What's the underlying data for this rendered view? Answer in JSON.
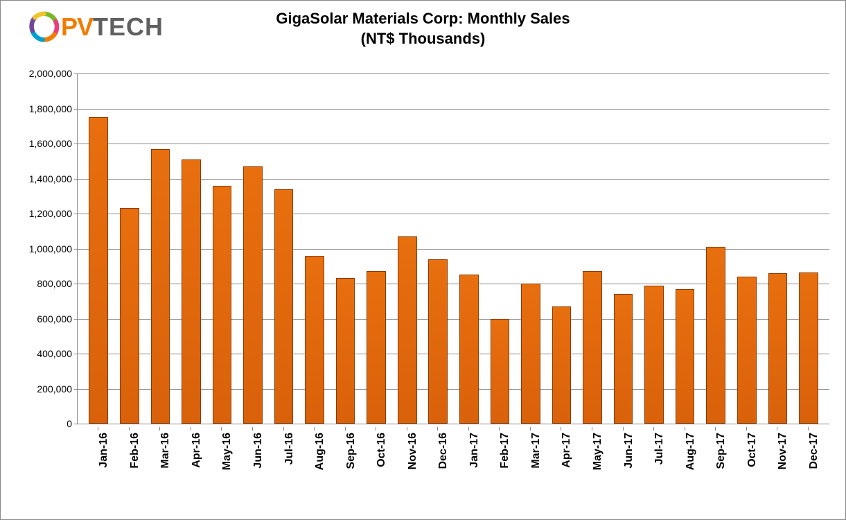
{
  "chart": {
    "type": "bar",
    "title_line1": "GigaSolar Materials Corp: Monthly Sales",
    "title_line2": "(NT$ Thousands)",
    "title_fontsize": 22,
    "background_color": "#ffffff",
    "border_color": "#888888",
    "grid_color": "#888888",
    "bar_color": "#e86f0e",
    "bar_border_color": "#8b3a00",
    "label_color": "#000000",
    "x_label_fontsize": 16,
    "y_label_fontsize": 14,
    "ylim": [
      0,
      2000000
    ],
    "ytick_step": 200000,
    "yticks": [
      {
        "value": 0,
        "label": "0"
      },
      {
        "value": 200000,
        "label": "200,000"
      },
      {
        "value": 400000,
        "label": "400,000"
      },
      {
        "value": 600000,
        "label": "600,000"
      },
      {
        "value": 800000,
        "label": "800,000"
      },
      {
        "value": 1000000,
        "label": "1,000,000"
      },
      {
        "value": 1200000,
        "label": "1,200,000"
      },
      {
        "value": 1400000,
        "label": "1,400,000"
      },
      {
        "value": 1600000,
        "label": "1,600,000"
      },
      {
        "value": 1800000,
        "label": "1,800,000"
      },
      {
        "value": 2000000,
        "label": "2,000,000"
      }
    ],
    "categories": [
      "Jan-16",
      "Feb-16",
      "Mar-16",
      "Apr-16",
      "May-16",
      "Jun-16",
      "Jul-16",
      "Aug-16",
      "Sep-16",
      "Oct-16",
      "Nov-16",
      "Dec-16",
      "Jan-17",
      "Feb-17",
      "Mar-17",
      "Apr-17",
      "May-17",
      "Jun-17",
      "Jul-17",
      "Aug-17",
      "Sep-17",
      "Oct-17",
      "Nov-17",
      "Dec-17"
    ],
    "values": [
      1750000,
      1230000,
      1570000,
      1510000,
      1360000,
      1470000,
      1340000,
      960000,
      830000,
      870000,
      1070000,
      940000,
      850000,
      600000,
      800000,
      670000,
      870000,
      740000,
      790000,
      770000,
      1010000,
      840000,
      860000,
      865000
    ],
    "bar_width": 0.62
  },
  "logo": {
    "pv_text": "PV",
    "tech_text": "TECH",
    "pv_color": "#f07d00",
    "tech_color": "#606060"
  }
}
